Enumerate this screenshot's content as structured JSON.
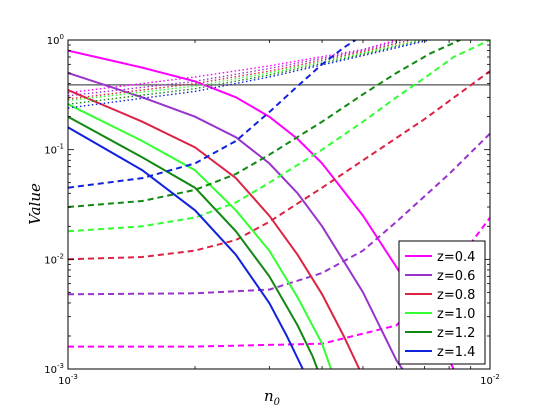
{
  "chart_data": {
    "type": "line",
    "xlabel": "n",
    "xlabel_sub": "0",
    "ylabel": "Value",
    "x_scale": "log",
    "y_scale": "log",
    "xlim": [
      0.001,
      0.01
    ],
    "ylim": [
      0.001,
      1.0
    ],
    "x_ticks": [
      {
        "base": "10",
        "exp": "-3",
        "value": 0.001
      },
      {
        "base": "10",
        "exp": "-2",
        "value": 0.01
      }
    ],
    "y_ticks": [
      {
        "base": "10",
        "exp": "0",
        "value": 1
      },
      {
        "base": "10",
        "exp": "-1",
        "value": 0.1
      },
      {
        "base": "10",
        "exp": "-2",
        "value": 0.01
      },
      {
        "base": "10",
        "exp": "-3",
        "value": 0.001
      }
    ],
    "reference_line": {
      "y": 0.39,
      "color": "#555555"
    },
    "legend_position": "lower right",
    "series": [
      {
        "name": "z=0.4",
        "color": "#ff00ff",
        "solid": [
          [
            0.001,
            0.8
          ],
          [
            0.0015,
            0.56
          ],
          [
            0.002,
            0.42
          ],
          [
            0.0025,
            0.3
          ],
          [
            0.003,
            0.2
          ],
          [
            0.0035,
            0.125
          ],
          [
            0.004,
            0.075
          ],
          [
            0.005,
            0.025
          ],
          [
            0.006,
            0.0085
          ],
          [
            0.007,
            0.0033
          ],
          [
            0.008,
            0.0012
          ],
          [
            0.0082,
            0.001
          ]
        ],
        "dashed": [
          [
            0.001,
            0.0016
          ],
          [
            0.002,
            0.0016
          ],
          [
            0.004,
            0.0017
          ],
          [
            0.006,
            0.0025
          ],
          [
            0.008,
            0.008
          ],
          [
            0.009,
            0.014
          ],
          [
            0.01,
            0.024
          ]
        ],
        "dotted": [
          [
            0.001,
            0.33
          ],
          [
            0.002,
            0.46
          ],
          [
            0.003,
            0.58
          ],
          [
            0.005,
            0.82
          ],
          [
            0.006,
            1.0
          ]
        ]
      },
      {
        "name": "z=0.6",
        "color": "#9933cc",
        "solid": [
          [
            0.001,
            0.5
          ],
          [
            0.0015,
            0.3
          ],
          [
            0.002,
            0.2
          ],
          [
            0.0025,
            0.13
          ],
          [
            0.003,
            0.075
          ],
          [
            0.0035,
            0.04
          ],
          [
            0.004,
            0.02
          ],
          [
            0.005,
            0.005
          ],
          [
            0.006,
            0.0012
          ],
          [
            0.0062,
            0.001
          ]
        ],
        "dashed": [
          [
            0.001,
            0.0048
          ],
          [
            0.002,
            0.0049
          ],
          [
            0.003,
            0.0053
          ],
          [
            0.004,
            0.0075
          ],
          [
            0.005,
            0.012
          ],
          [
            0.006,
            0.022
          ],
          [
            0.008,
            0.06
          ],
          [
            0.01,
            0.14
          ]
        ],
        "dotted": [
          [
            0.001,
            0.31
          ],
          [
            0.002,
            0.42
          ],
          [
            0.003,
            0.55
          ],
          [
            0.005,
            0.8
          ],
          [
            0.0062,
            1.0
          ]
        ]
      },
      {
        "name": "z=0.8",
        "color": "#dd2244",
        "solid": [
          [
            0.001,
            0.35
          ],
          [
            0.0015,
            0.18
          ],
          [
            0.002,
            0.105
          ],
          [
            0.0025,
            0.055
          ],
          [
            0.003,
            0.025
          ],
          [
            0.0035,
            0.011
          ],
          [
            0.004,
            0.0048
          ],
          [
            0.0045,
            0.002
          ],
          [
            0.0049,
            0.001
          ]
        ],
        "dashed": [
          [
            0.001,
            0.01
          ],
          [
            0.0015,
            0.0105
          ],
          [
            0.002,
            0.012
          ],
          [
            0.0025,
            0.015
          ],
          [
            0.003,
            0.022
          ],
          [
            0.004,
            0.045
          ],
          [
            0.005,
            0.08
          ],
          [
            0.007,
            0.19
          ],
          [
            0.01,
            0.52
          ]
        ],
        "dotted": [
          [
            0.001,
            0.29
          ],
          [
            0.002,
            0.4
          ],
          [
            0.003,
            0.52
          ],
          [
            0.005,
            0.78
          ],
          [
            0.0065,
            1.0
          ]
        ]
      },
      {
        "name": "z=1.0",
        "color": "#33ff33",
        "solid": [
          [
            0.001,
            0.26
          ],
          [
            0.0015,
            0.12
          ],
          [
            0.002,
            0.065
          ],
          [
            0.0025,
            0.028
          ],
          [
            0.003,
            0.012
          ],
          [
            0.0035,
            0.0045
          ],
          [
            0.004,
            0.0017
          ],
          [
            0.0042,
            0.001
          ]
        ],
        "dashed": [
          [
            0.001,
            0.018
          ],
          [
            0.0015,
            0.02
          ],
          [
            0.002,
            0.024
          ],
          [
            0.0025,
            0.033
          ],
          [
            0.003,
            0.05
          ],
          [
            0.004,
            0.1
          ],
          [
            0.005,
            0.18
          ],
          [
            0.006,
            0.3
          ],
          [
            0.007,
            0.45
          ],
          [
            0.0082,
            0.7
          ],
          [
            0.01,
            1.0
          ]
        ],
        "dotted": [
          [
            0.001,
            0.28
          ],
          [
            0.002,
            0.38
          ],
          [
            0.003,
            0.5
          ],
          [
            0.005,
            0.76
          ],
          [
            0.0068,
            1.0
          ]
        ]
      },
      {
        "name": "z=1.2",
        "color": "#118811",
        "solid": [
          [
            0.001,
            0.2
          ],
          [
            0.0015,
            0.085
          ],
          [
            0.002,
            0.045
          ],
          [
            0.0025,
            0.018
          ],
          [
            0.003,
            0.007
          ],
          [
            0.0035,
            0.0025
          ],
          [
            0.0038,
            0.0013
          ],
          [
            0.0039,
            0.001
          ]
        ],
        "dashed": [
          [
            0.001,
            0.03
          ],
          [
            0.0015,
            0.034
          ],
          [
            0.002,
            0.043
          ],
          [
            0.0025,
            0.06
          ],
          [
            0.003,
            0.09
          ],
          [
            0.004,
            0.18
          ],
          [
            0.005,
            0.32
          ],
          [
            0.006,
            0.5
          ],
          [
            0.0072,
            0.75
          ],
          [
            0.0085,
            1.0
          ]
        ],
        "dotted": [
          [
            0.001,
            0.26
          ],
          [
            0.002,
            0.36
          ],
          [
            0.003,
            0.48
          ],
          [
            0.005,
            0.74
          ],
          [
            0.007,
            1.0
          ]
        ]
      },
      {
        "name": "z=1.4",
        "color": "#1122dd",
        "solid": [
          [
            0.001,
            0.16
          ],
          [
            0.0015,
            0.065
          ],
          [
            0.002,
            0.028
          ],
          [
            0.0025,
            0.011
          ],
          [
            0.003,
            0.004
          ],
          [
            0.0033,
            0.002
          ],
          [
            0.0036,
            0.001
          ]
        ],
        "dashed": [
          [
            0.001,
            0.045
          ],
          [
            0.0015,
            0.055
          ],
          [
            0.002,
            0.075
          ],
          [
            0.0025,
            0.12
          ],
          [
            0.003,
            0.22
          ],
          [
            0.0035,
            0.38
          ],
          [
            0.004,
            0.6
          ],
          [
            0.0045,
            0.85
          ],
          [
            0.0048,
            1.0
          ]
        ],
        "dotted": [
          [
            0.001,
            0.24
          ],
          [
            0.002,
            0.34
          ],
          [
            0.003,
            0.46
          ],
          [
            0.005,
            0.72
          ],
          [
            0.0072,
            1.0
          ]
        ]
      }
    ]
  }
}
